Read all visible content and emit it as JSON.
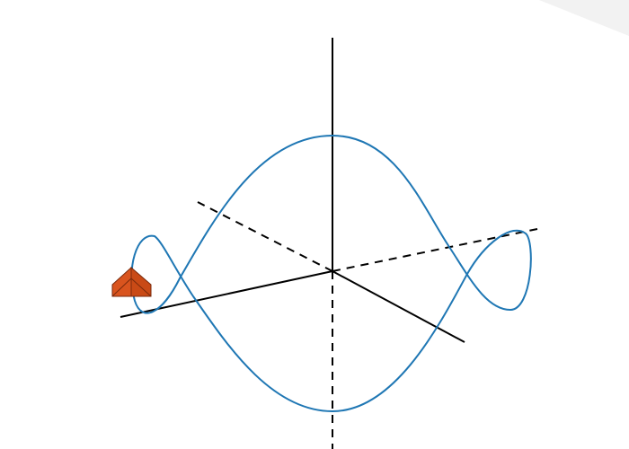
{
  "scene": {
    "background": "#ffffff",
    "corner_shade": "#f2f2f2",
    "axis_color": "#000000",
    "curve_color": "#1f77b4",
    "marker_fill": "#d9541e",
    "marker_stroke": "#7a2a0c",
    "marker_icon": "orange-pyramid-marker"
  }
}
